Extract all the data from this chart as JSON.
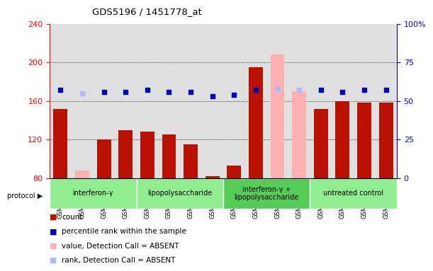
{
  "title": "GDS5196 / 1451778_at",
  "samples": [
    "GSM1304840",
    "GSM1304841",
    "GSM1304842",
    "GSM1304843",
    "GSM1304844",
    "GSM1304845",
    "GSM1304846",
    "GSM1304847",
    "GSM1304848",
    "GSM1304849",
    "GSM1304850",
    "GSM1304851",
    "GSM1304836",
    "GSM1304837",
    "GSM1304838",
    "GSM1304839"
  ],
  "count_values": [
    152,
    88,
    120,
    130,
    128,
    125,
    115,
    82,
    93,
    195,
    208,
    170,
    152,
    160,
    158,
    158
  ],
  "count_absent": [
    false,
    true,
    false,
    false,
    false,
    false,
    false,
    false,
    false,
    false,
    true,
    true,
    false,
    false,
    false,
    false
  ],
  "rank_pct": [
    57,
    55,
    56,
    56,
    57,
    56,
    56,
    53,
    54,
    57,
    58,
    57,
    57,
    56,
    57,
    57
  ],
  "rank_absent": [
    false,
    true,
    false,
    false,
    false,
    false,
    false,
    false,
    false,
    false,
    true,
    true,
    false,
    false,
    false,
    false
  ],
  "protocols": [
    {
      "label": "interferon-γ",
      "start": 0,
      "end": 4,
      "color": "#90EE90"
    },
    {
      "label": "lipopolysaccharide",
      "start": 4,
      "end": 8,
      "color": "#90EE90"
    },
    {
      "label": "interferon-γ +\nlipopolysaccharide",
      "start": 8,
      "end": 12,
      "color": "#55CC55"
    },
    {
      "label": "untreated control",
      "start": 12,
      "end": 16,
      "color": "#90EE90"
    }
  ],
  "ylim_left": [
    80,
    240
  ],
  "ylim_right": [
    0,
    100
  ],
  "yticks_left": [
    80,
    120,
    160,
    200,
    240
  ],
  "yticks_right": [
    0,
    25,
    50,
    75,
    100
  ],
  "bar_color_present": "#BB1100",
  "bar_color_absent": "#FFB0B0",
  "dot_color_present": "#0000BB",
  "dot_color_absent": "#AABBFF",
  "bg_color": "#E0E0E0"
}
